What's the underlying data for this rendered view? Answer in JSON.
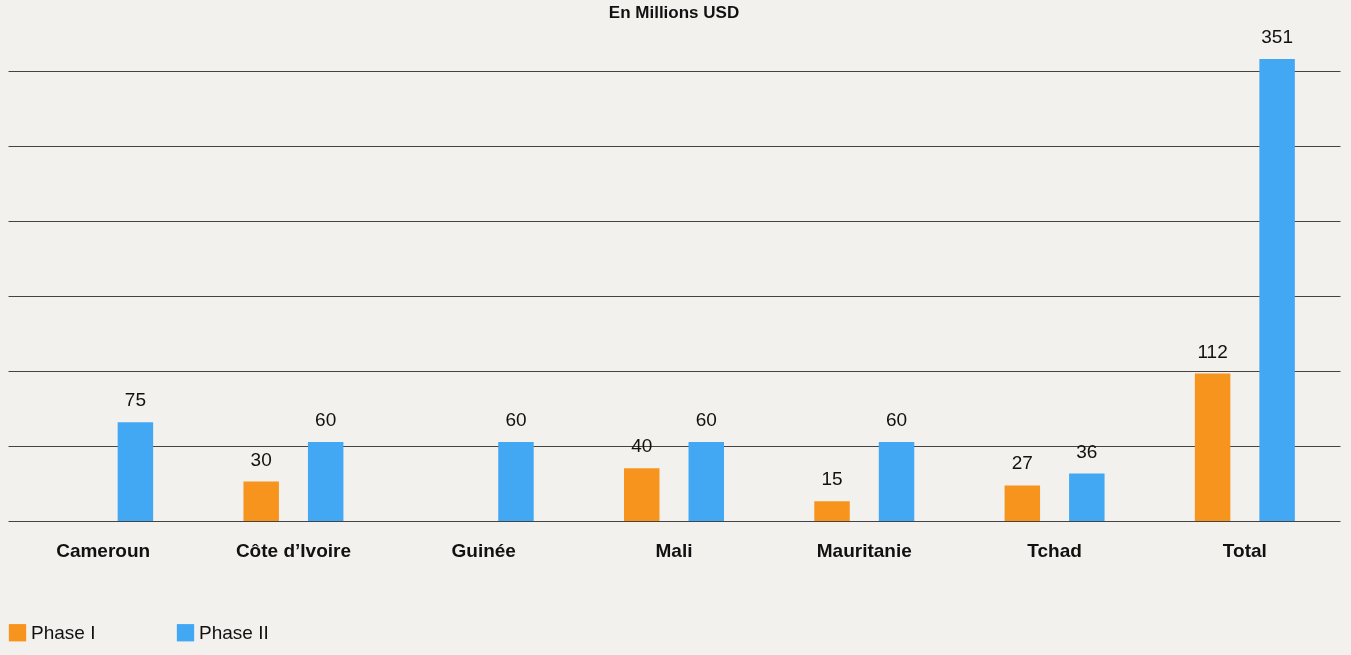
{
  "chart_data": {
    "type": "bar",
    "title": "En Millions USD",
    "categories": [
      "Cameroun",
      "Côte d’Ivoire",
      "Guinée",
      "Mali",
      "Mauritanie",
      "Tchad",
      "Total"
    ],
    "series": [
      {
        "name": "Phase I",
        "color": "#f7941d",
        "values": [
          null,
          30,
          null,
          40,
          15,
          27,
          112
        ]
      },
      {
        "name": "Phase II",
        "color": "#42a8f4",
        "values": [
          75,
          60,
          60,
          60,
          60,
          36,
          351
        ]
      }
    ],
    "data_labels": true,
    "yticks": [
      {
        "value": 0,
        "label": null
      },
      {
        "value": 57,
        "label": null
      },
      {
        "value": 114,
        "label": null
      },
      {
        "value": 171,
        "label": null
      },
      {
        "value": 228,
        "label": null
      },
      {
        "value": 285,
        "label": null
      },
      {
        "value": 342,
        "label": null
      }
    ],
    "grid": "y",
    "tick_labels": "x",
    "legend": "bottom left"
  }
}
